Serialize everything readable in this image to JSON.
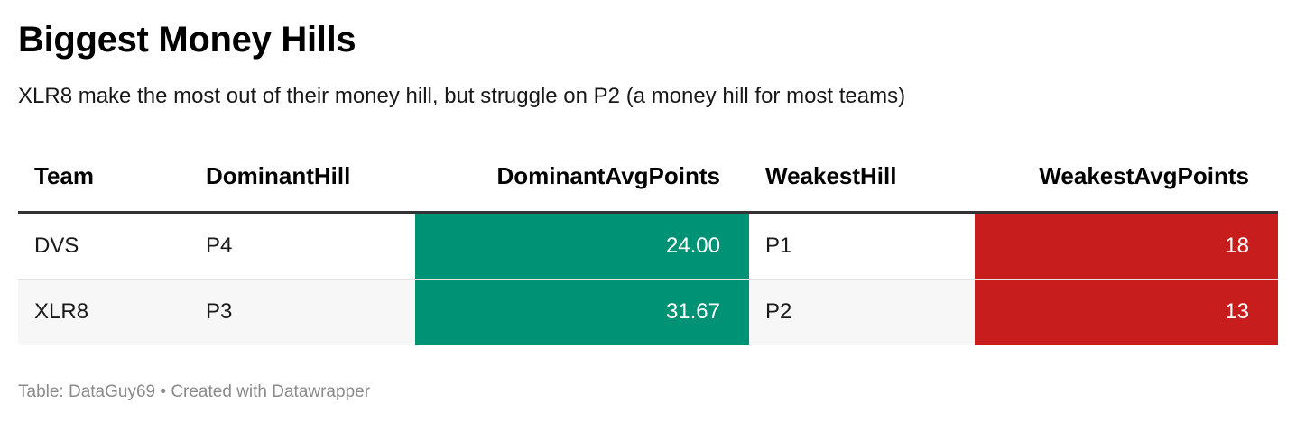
{
  "title": "Biggest Money Hills",
  "subtitle": "XLR8 make the most out of their money hill, but struggle on P2 (a money hill for most teams)",
  "footer": {
    "source_label": "Table: DataGuy69",
    "separator": "•",
    "credit": "Created with Datawrapper"
  },
  "colors": {
    "dominant_cell": "#009275",
    "weakest_cell": "#c71e1d"
  },
  "chart_data": {
    "type": "table",
    "columns": [
      "Team",
      "DominantHill",
      "DominantAvgPoints",
      "WeakestHill",
      "WeakestAvgPoints"
    ],
    "rows": [
      [
        "DVS",
        "P4",
        "24.00",
        "P1",
        "18"
      ],
      [
        "XLR8",
        "P3",
        "31.67",
        "P2",
        "13"
      ]
    ]
  }
}
